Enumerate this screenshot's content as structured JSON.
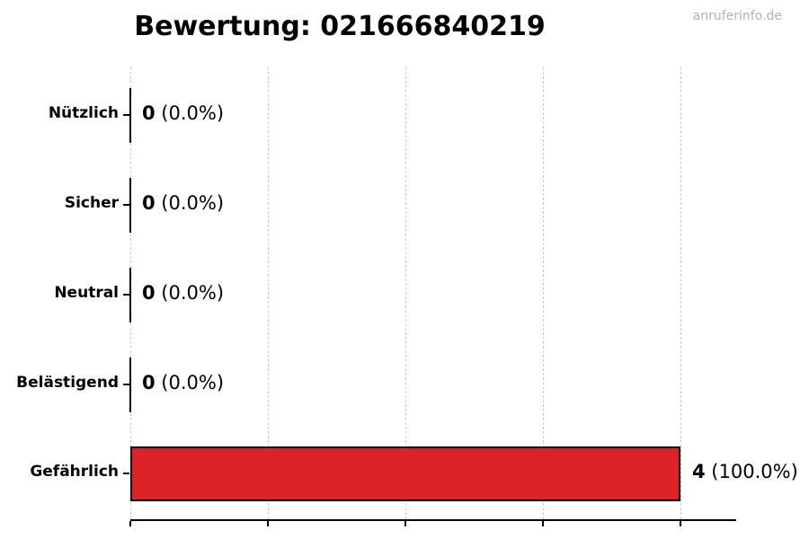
{
  "title": "Bewertung: 021666840219",
  "watermark": "anruferinfo.de",
  "colors": {
    "bar": "#dc2327",
    "bar_edge": "#000000",
    "grid": "#cccccc",
    "axis": "#000000",
    "watermark_text": "#b0b0b0",
    "text": "#000000"
  },
  "chart_data": {
    "type": "bar",
    "orientation": "horizontal",
    "title": "Bewertung: 021666840219",
    "categories": [
      "Nützlich",
      "Sicher",
      "Neutral",
      "Belästigend",
      "Gefährlich"
    ],
    "values": [
      0,
      0,
      0,
      0,
      4
    ],
    "percentages": [
      "0.0%",
      "0.0%",
      "0.0%",
      "0.0%",
      "100.0%"
    ],
    "value_labels": [
      "0 (0.0%)",
      "0 (0.0%)",
      "0 (0.0%)",
      "0 (0.0%)",
      "4 (100.0%)"
    ],
    "xlim": [
      0,
      4.4
    ],
    "xticks": [
      0,
      1,
      2,
      3,
      4
    ],
    "xtick_labels_visible": false,
    "grid": {
      "axis": "x",
      "style": "dashed",
      "color": "#cccccc"
    },
    "bar_color": "#dc2327",
    "bar_edge_color": "#000000",
    "legend": "none"
  }
}
